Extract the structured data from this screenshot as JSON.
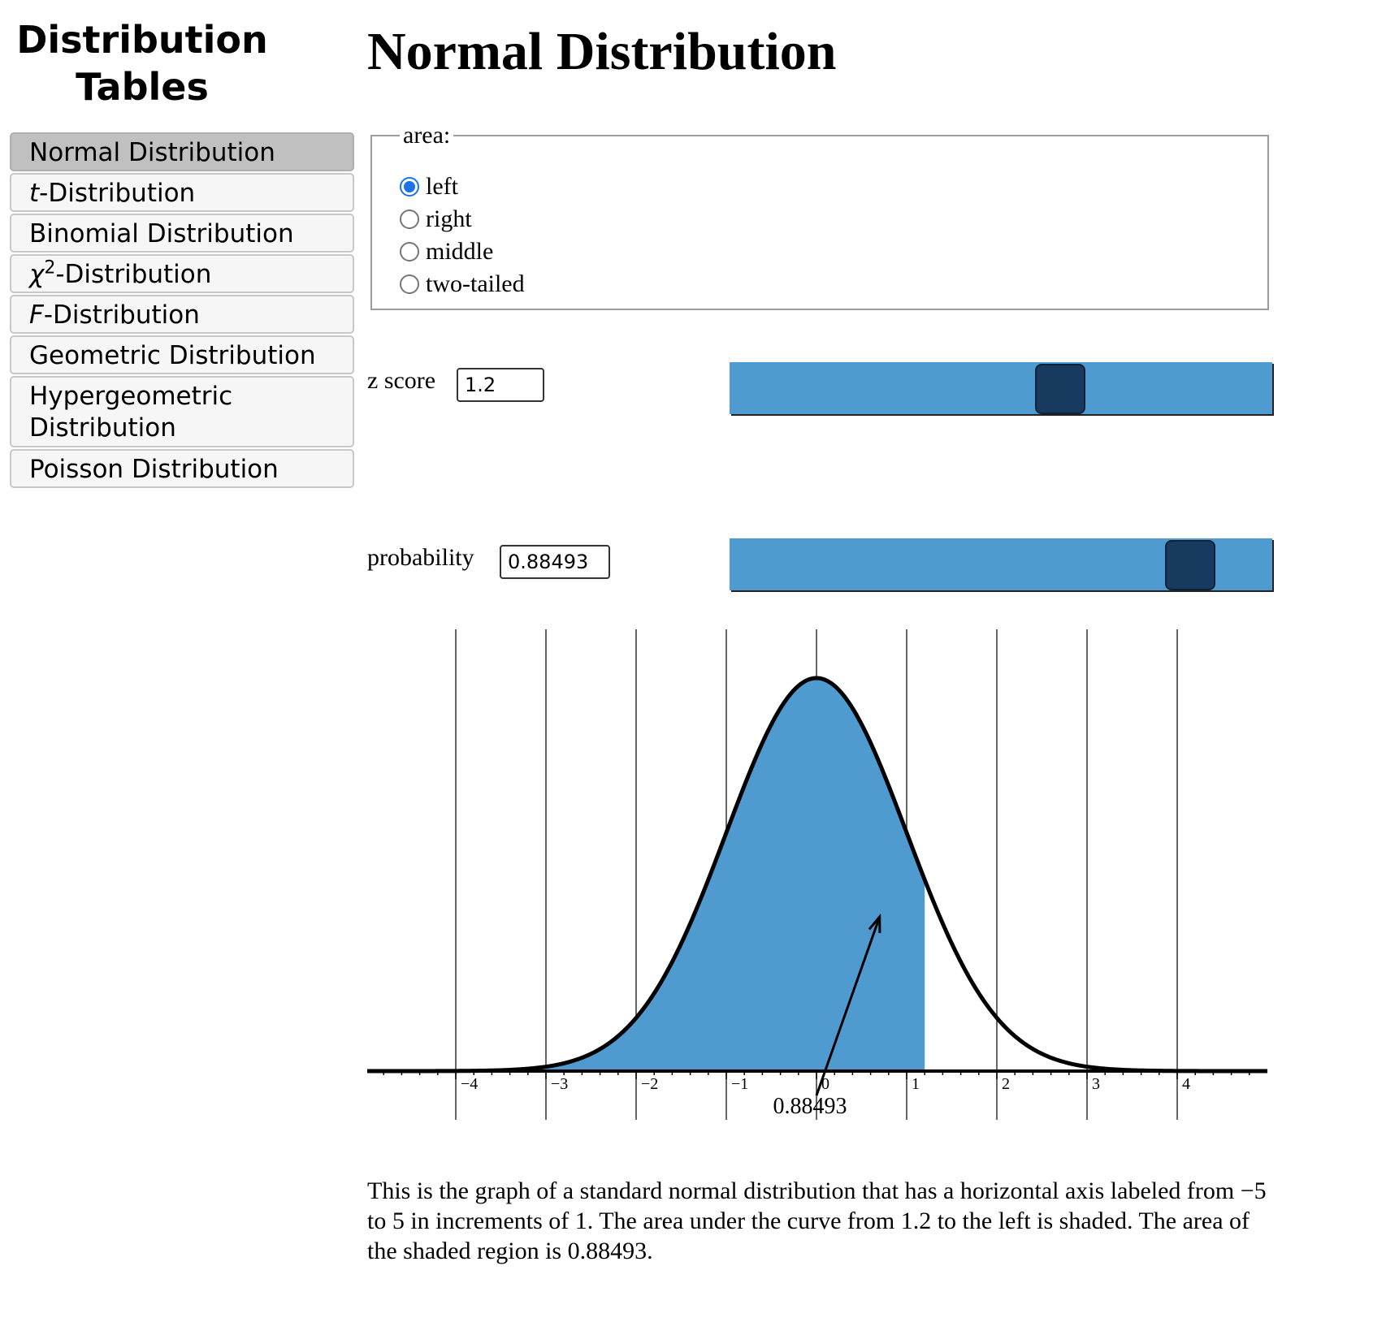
{
  "sidebar": {
    "title_line1": "Distribution",
    "title_line2": "Tables",
    "items": [
      {
        "label": "Normal Distribution",
        "active": true
      },
      {
        "label_italic": "t",
        "label": "-Distribution"
      },
      {
        "label": "Binomial Distribution"
      },
      {
        "label_italic": "χ",
        "label_sup": "2",
        "label": "-Distribution"
      },
      {
        "label_italic": "F",
        "label": "-Distribution"
      },
      {
        "label": "Geometric Distribution"
      },
      {
        "label": "Hypergeometric Distribution"
      },
      {
        "label": "Poisson Distribution"
      }
    ]
  },
  "main": {
    "title": "Normal Distribution",
    "area": {
      "legend": "area:",
      "options": [
        "left",
        "right",
        "middle",
        "two-tailed"
      ],
      "selected": "left"
    },
    "z_score": {
      "label": "z score",
      "value": "1.2",
      "slider_fraction": 0.62
    },
    "probability": {
      "label": "probability",
      "value": "0.88493",
      "slider_fraction": 0.885
    },
    "caption": "This is the graph of a standard normal distribution that has a horizontal axis labeled from −5 to 5 in increments of 1. The area under the curve from 1.2 to the left is shaded. The area of the shaded region is 0.88493."
  },
  "chart_data": {
    "type": "area",
    "xlim": [
      -5,
      5
    ],
    "tick_labels": [
      "−4",
      "−3",
      "−2",
      "−1",
      "0",
      "1",
      "2",
      "3",
      "4"
    ],
    "tick_values": [
      -4,
      -3,
      -2,
      -1,
      0,
      1,
      2,
      3,
      4
    ],
    "shade_from": -5,
    "shade_to": 1.2,
    "area_label": "0.88493",
    "arrow_target": [
      0.7,
      0.18
    ],
    "grid": true,
    "fill_color": "#4f9bd0",
    "curve_color": "#000000"
  }
}
